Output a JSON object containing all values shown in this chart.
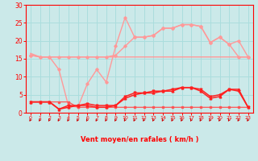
{
  "x": [
    0,
    1,
    2,
    3,
    4,
    5,
    6,
    7,
    8,
    9,
    10,
    11,
    12,
    13,
    14,
    15,
    16,
    17,
    18,
    19,
    20,
    21,
    22,
    23
  ],
  "line_pink_flat": [
    16.5,
    15.5,
    15.5,
    15.5,
    15.5,
    15.5,
    15.5,
    15.5,
    15.5,
    15.5,
    15.5,
    15.5,
    15.5,
    15.5,
    15.5,
    15.5,
    15.5,
    15.5,
    15.5,
    15.5,
    15.5,
    15.5,
    15.5,
    15.5
  ],
  "line_pink_wavy": [
    16.0,
    15.5,
    15.5,
    12.0,
    2.0,
    1.5,
    8.0,
    12.0,
    8.5,
    18.5,
    26.5,
    21.0,
    21.0,
    21.5,
    23.5,
    23.5,
    24.5,
    24.5,
    24.0,
    19.5,
    21.0,
    19.0,
    20.0,
    15.5
  ],
  "line_pink_upper": [
    16.0,
    15.5,
    15.5,
    15.5,
    15.5,
    15.5,
    15.5,
    15.5,
    15.5,
    16.0,
    18.5,
    21.0,
    21.0,
    21.5,
    23.5,
    23.5,
    24.5,
    24.5,
    24.0,
    19.5,
    21.0,
    19.0,
    15.5,
    15.5
  ],
  "line_red_flat": [
    3.0,
    3.0,
    3.0,
    3.0,
    3.0,
    1.5,
    1.5,
    1.5,
    1.5,
    1.5,
    1.5,
    1.5,
    1.5,
    1.5,
    1.5,
    1.5,
    1.5,
    1.5,
    1.5,
    1.5,
    1.5,
    1.5,
    1.5,
    1.5
  ],
  "line_red_upper": [
    3.0,
    3.0,
    3.0,
    1.0,
    1.5,
    2.0,
    2.0,
    1.5,
    1.5,
    2.0,
    4.0,
    5.0,
    5.5,
    5.5,
    6.0,
    6.0,
    7.0,
    7.0,
    6.0,
    4.0,
    4.5,
    6.5,
    6.5,
    1.5
  ],
  "line_red_lower": [
    3.0,
    3.0,
    3.0,
    1.0,
    2.0,
    2.0,
    2.5,
    2.0,
    2.0,
    2.0,
    4.5,
    5.5,
    5.5,
    6.0,
    6.0,
    6.5,
    7.0,
    7.0,
    6.5,
    4.5,
    5.0,
    6.5,
    6.0,
    1.5
  ],
  "xlabel": "Vent moyen/en rafales ( km/h )",
  "xlim": [
    -0.5,
    23.5
  ],
  "ylim": [
    0,
    30
  ],
  "yticks": [
    0,
    5,
    10,
    15,
    20,
    25,
    30
  ],
  "xticks": [
    0,
    1,
    2,
    3,
    4,
    5,
    6,
    7,
    8,
    9,
    10,
    11,
    12,
    13,
    14,
    15,
    16,
    17,
    18,
    19,
    20,
    21,
    22,
    23
  ],
  "bg_color": "#CBE9E9",
  "grid_color": "#AADDDD",
  "tick_color": "#FF0000",
  "label_color": "#FF0000",
  "pink": "#FF9999",
  "red": "#FF2020",
  "red2": "#FF5555"
}
